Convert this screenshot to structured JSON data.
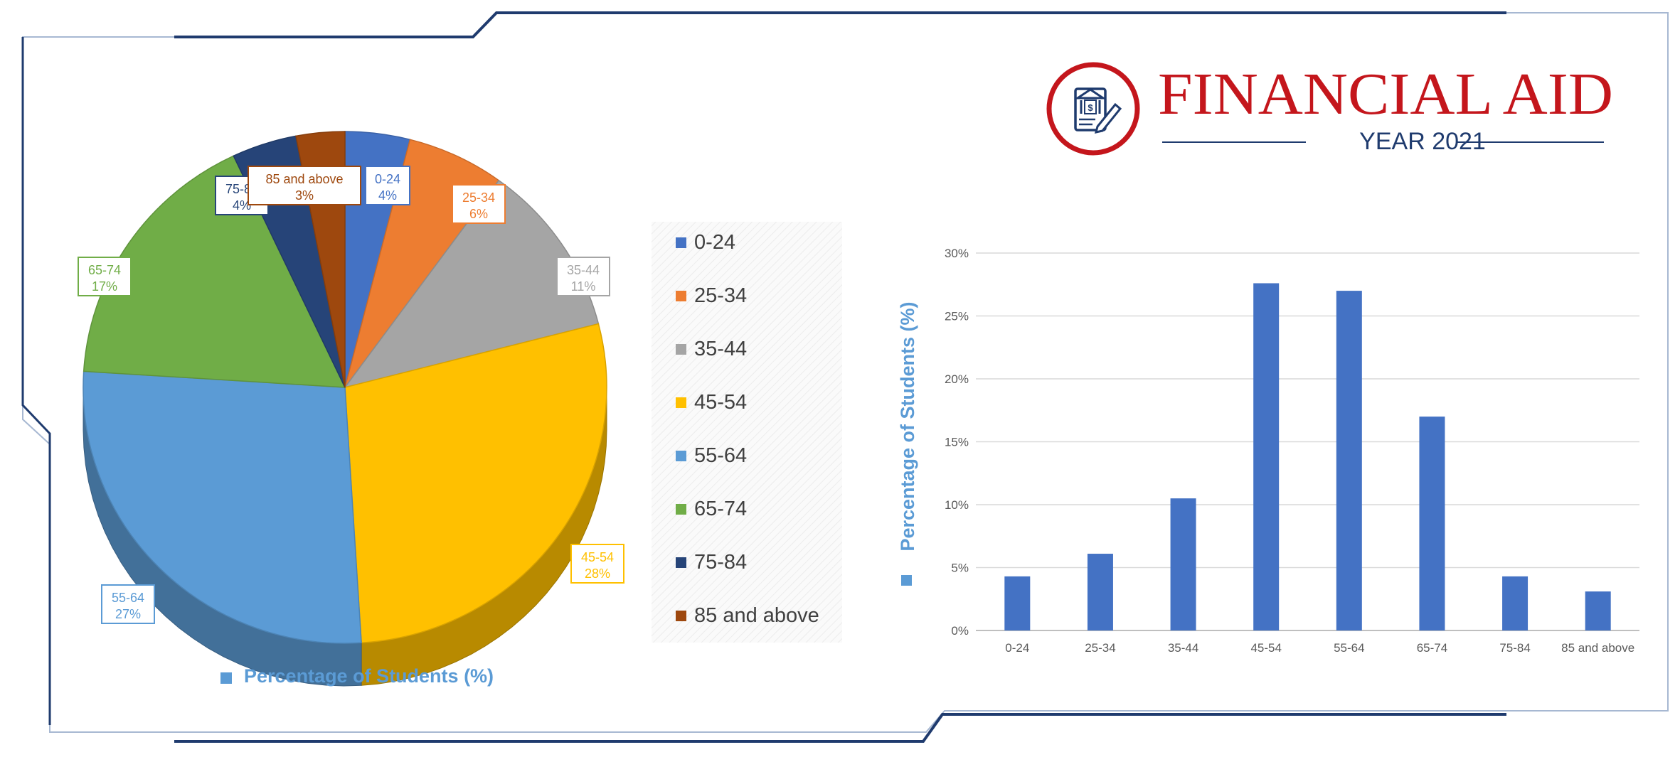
{
  "header": {
    "title": "FINANCIAL AID",
    "subtitle": "YEAR 2021",
    "brand_color": "#c4161c",
    "navy": "#1f3b6e",
    "icon": "bank-document-pen-icon"
  },
  "chart_data": [
    {
      "type": "pie",
      "style": "3d-exploded-none",
      "categories": [
        "0-24",
        "25-34",
        "35-44",
        "45-54",
        "55-64",
        "65-74",
        "75-84",
        "85 and above"
      ],
      "values": [
        4,
        6,
        11,
        28,
        27,
        17,
        4,
        3
      ],
      "data_labels": [
        "4%",
        "6%",
        "11%",
        "28%",
        "27%",
        "17%",
        "4%",
        "3%"
      ],
      "colors": [
        "#4472c4",
        "#ed7d31",
        "#a5a5a5",
        "#ffc000",
        "#5b9bd5",
        "#70ad47",
        "#264478",
        "#9e480e"
      ],
      "series_label": "Percentage of Students (%)",
      "legend_position": "right",
      "legend": [
        "0-24",
        "25-34",
        "35-44",
        "45-54",
        "55-64",
        "65-74",
        "75-84",
        "85 and above"
      ]
    },
    {
      "type": "bar",
      "categories": [
        "0-24",
        "25-34",
        "35-44",
        "45-54",
        "55-64",
        "65-74",
        "75-84",
        "85 and above"
      ],
      "values": [
        4.3,
        6.1,
        10.5,
        27.6,
        27.0,
        17.0,
        4.3,
        3.1
      ],
      "ylim": [
        0,
        30
      ],
      "yticks": [
        "0%",
        "5%",
        "10%",
        "15%",
        "20%",
        "25%",
        "30%"
      ],
      "ylabel": "Percentage of Students (%)",
      "grid": true,
      "bar_color": "#4472c4"
    }
  ]
}
